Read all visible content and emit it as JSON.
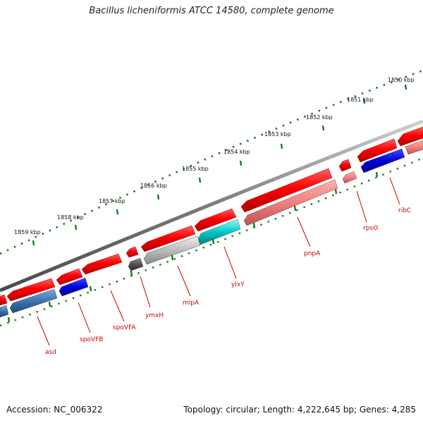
{
  "title": "Bacillus licheniformis ATCC 14580, complete genome",
  "footer": {
    "accession": "Accession: NC_006322",
    "topology": "Topology: circular; Length: 4,222,645 bp; Genes: 4,285"
  },
  "colors": {
    "backbone": "#8a8a8a",
    "tick": "#1a7a1a",
    "gene_red": "#ee0000",
    "gene_pink": "#f08080",
    "gene_blue": "#0000cc",
    "gene_steelblue": "#3a74b0",
    "gene_cyan": "#00c8c8",
    "gene_gray": "#b8b8b8",
    "gene_dark": "#505050",
    "label": "#cc0000"
  },
  "kbp_labels": [
    "1850 kbp",
    "1851 kbp",
    "1852 kbp",
    "1853 kbp",
    "1854 kbp",
    "1855 kbp",
    "1856 kbp",
    "1857 kbp",
    "1858 kbp",
    "1859 kbp"
  ],
  "gene_labels": [
    "ribC",
    "rpsO",
    "pnpA",
    "ylxY",
    "mlpA",
    "ymxH",
    "spoVFA",
    "spoVFB",
    "asd"
  ]
}
